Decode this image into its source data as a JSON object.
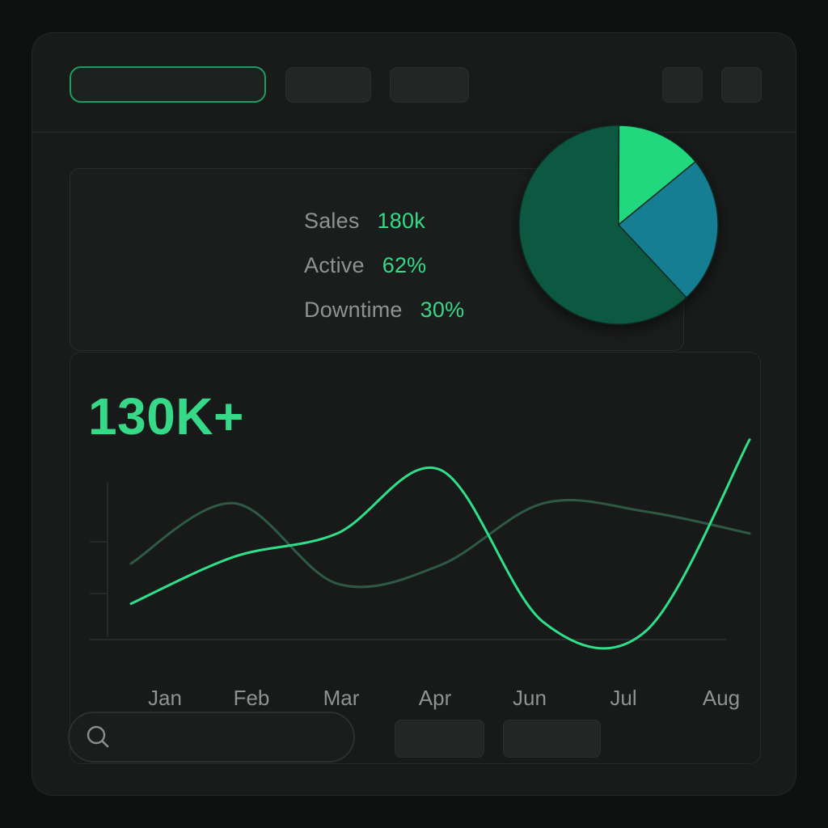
{
  "toolbar": {
    "buttons": [
      "tab-active",
      "tab-2",
      "tab-3",
      "action-1",
      "action-2"
    ]
  },
  "stats": {
    "sales": {
      "label": "Sales",
      "value": "180k"
    },
    "active": {
      "label": "Active",
      "value": "62%"
    },
    "downtime": {
      "label": "Downtime",
      "value": "30%"
    }
  },
  "headline": {
    "value": "130K+"
  },
  "colors": {
    "accent": "#35d987",
    "pie_large": "#0f5940",
    "pie_bright": "#22d87e",
    "pie_teal": "#137e93",
    "series_bright": "#2fe08a",
    "series_dim": "#2e5a45"
  },
  "chart_data": [
    {
      "type": "pie",
      "slices": [
        {
          "value": 62,
          "color": "#0f5940"
        },
        {
          "value": 14,
          "color": "#22d87e"
        },
        {
          "value": 24,
          "color": "#137e93"
        }
      ]
    },
    {
      "type": "line",
      "categories": [
        "Jan",
        "Feb",
        "Mar",
        "Apr",
        "Jun",
        "Jul",
        "Aug"
      ],
      "ylim": [
        0,
        100
      ],
      "series": [
        {
          "color": "#2fe08a",
          "values": [
            20,
            48,
            62,
            100,
            9,
            4,
            118
          ]
        },
        {
          "color": "#2e5a45",
          "values": [
            44,
            80,
            32,
            43,
            80,
            75,
            62
          ]
        }
      ]
    }
  ],
  "search": {
    "icon": "search-icon",
    "placeholder": ""
  },
  "bottom_buttons": [
    "action-a",
    "action-b"
  ]
}
